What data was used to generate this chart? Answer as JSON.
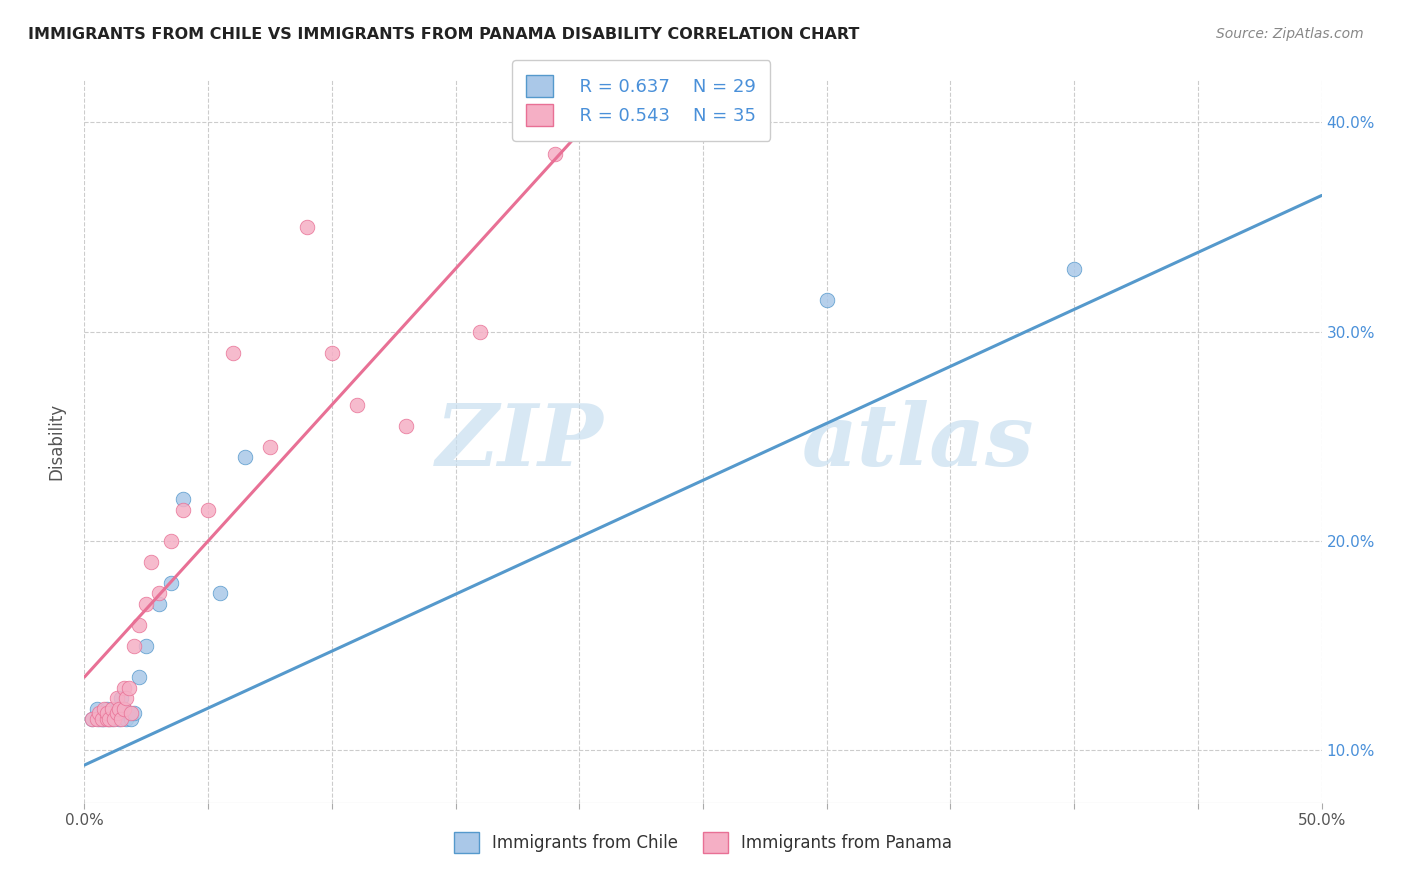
{
  "title": "IMMIGRANTS FROM CHILE VS IMMIGRANTS FROM PANAMA DISABILITY CORRELATION CHART",
  "source_text": "Source: ZipAtlas.com",
  "ylabel": "Disability",
  "xlim": [
    0.0,
    0.5
  ],
  "ylim": [
    0.075,
    0.42
  ],
  "xticks": [
    0.0,
    0.05,
    0.1,
    0.15,
    0.2,
    0.25,
    0.3,
    0.35,
    0.4,
    0.45,
    0.5
  ],
  "yticks": [
    0.1,
    0.2,
    0.3,
    0.4
  ],
  "legend_r1": "R = 0.637",
  "legend_n1": "N = 29",
  "legend_r2": "R = 0.543",
  "legend_n2": "N = 35",
  "color_chile": "#aac8e8",
  "color_panama": "#f5afc5",
  "color_chile_line": "#5599cc",
  "color_panama_line": "#e87095",
  "color_r_text": "#4a90d9",
  "watermark_zip": "ZIP",
  "watermark_atlas": "atlas",
  "background_color": "#ffffff",
  "grid_color": "#cccccc",
  "chile_x": [
    0.003,
    0.005,
    0.006,
    0.007,
    0.008,
    0.008,
    0.009,
    0.01,
    0.01,
    0.011,
    0.012,
    0.013,
    0.014,
    0.015,
    0.015,
    0.016,
    0.017,
    0.018,
    0.019,
    0.02,
    0.022,
    0.025,
    0.03,
    0.035,
    0.04,
    0.055,
    0.065,
    0.3,
    0.4
  ],
  "chile_y": [
    0.115,
    0.12,
    0.115,
    0.115,
    0.118,
    0.115,
    0.12,
    0.115,
    0.118,
    0.115,
    0.118,
    0.12,
    0.115,
    0.118,
    0.125,
    0.12,
    0.115,
    0.118,
    0.115,
    0.118,
    0.135,
    0.15,
    0.17,
    0.18,
    0.22,
    0.175,
    0.24,
    0.315,
    0.33
  ],
  "panama_x": [
    0.003,
    0.005,
    0.006,
    0.007,
    0.008,
    0.009,
    0.009,
    0.01,
    0.011,
    0.012,
    0.013,
    0.013,
    0.014,
    0.015,
    0.016,
    0.016,
    0.017,
    0.018,
    0.019,
    0.02,
    0.022,
    0.025,
    0.027,
    0.03,
    0.035,
    0.04,
    0.05,
    0.06,
    0.075,
    0.09,
    0.1,
    0.11,
    0.13,
    0.16,
    0.19
  ],
  "panama_y": [
    0.115,
    0.115,
    0.118,
    0.115,
    0.12,
    0.115,
    0.118,
    0.115,
    0.12,
    0.115,
    0.118,
    0.125,
    0.12,
    0.115,
    0.12,
    0.13,
    0.125,
    0.13,
    0.118,
    0.15,
    0.16,
    0.17,
    0.19,
    0.175,
    0.2,
    0.215,
    0.215,
    0.29,
    0.245,
    0.35,
    0.29,
    0.265,
    0.255,
    0.3,
    0.385
  ],
  "chile_line_x0": 0.0,
  "chile_line_y0": 0.093,
  "chile_line_x1": 0.5,
  "chile_line_y1": 0.365,
  "panama_line_x0": 0.0,
  "panama_line_y0": 0.135,
  "panama_line_x1": 0.2,
  "panama_line_y1": 0.395
}
